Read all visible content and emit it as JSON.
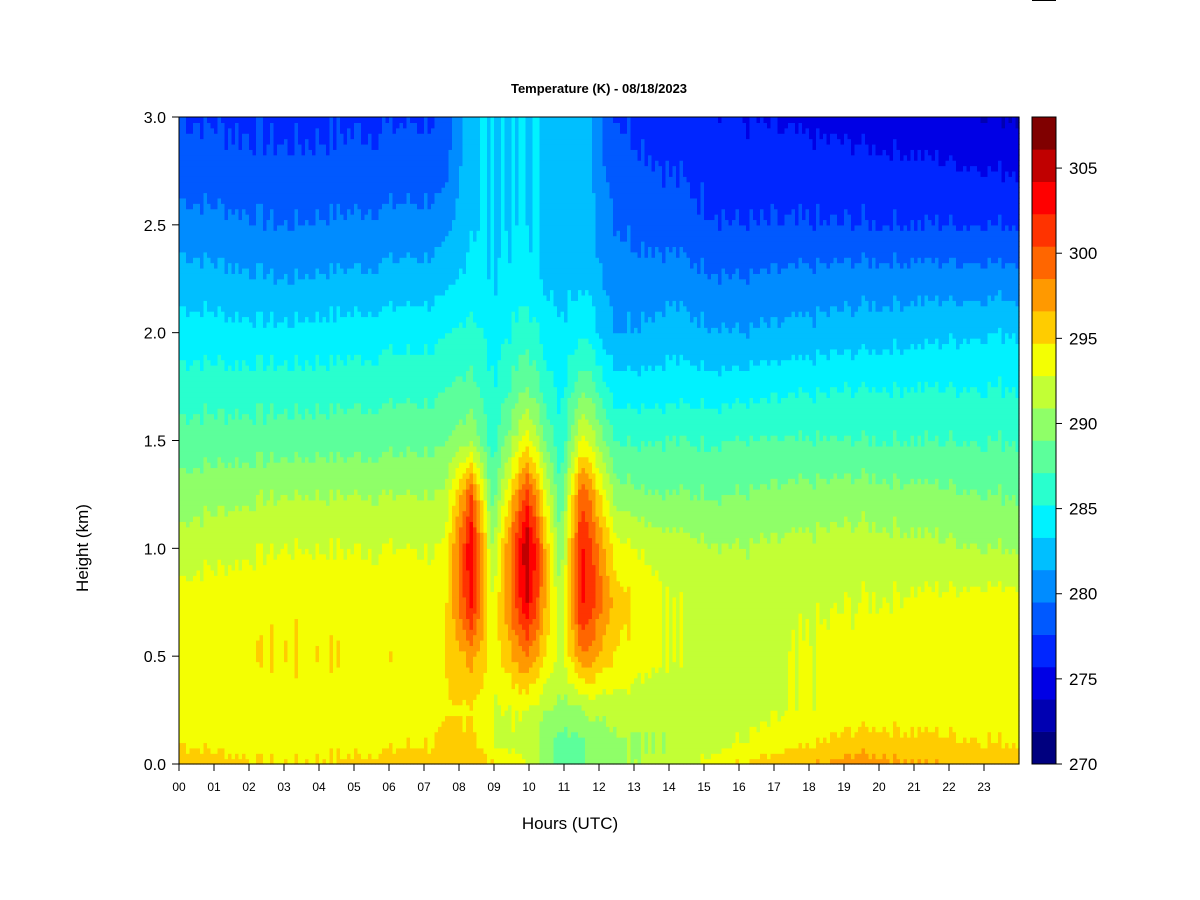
{
  "chart_data": {
    "type": "heatmap",
    "title": "Temperature (K) - 08/18/2023",
    "xlabel": "Hours (UTC)",
    "ylabel": "Height (km)",
    "x_tick_labels": [
      "00",
      "01",
      "02",
      "03",
      "04",
      "05",
      "06",
      "07",
      "08",
      "09",
      "10",
      "11",
      "12",
      "13",
      "14",
      "15",
      "16",
      "17",
      "18",
      "19",
      "20",
      "21",
      "22",
      "23"
    ],
    "x_range_hours": [
      0,
      24
    ],
    "y_tick_labels": [
      "0.0",
      "0.5",
      "1.0",
      "1.5",
      "2.0",
      "2.5",
      "3.0"
    ],
    "ylim": [
      0,
      3
    ],
    "colorbar": {
      "min": 270,
      "max": 308,
      "step": 2,
      "tick_labels": [
        "270",
        "275",
        "280",
        "285",
        "290",
        "295",
        "300",
        "305"
      ],
      "colors": [
        "#00007f",
        "#0000b2",
        "#0000e5",
        "#0026ff",
        "#0059ff",
        "#008cff",
        "#00bfff",
        "#00f2ff",
        "#29ffce",
        "#5cff9b",
        "#8fff68",
        "#c2ff35",
        "#f4ff02",
        "#ffcc00",
        "#ff9900",
        "#ff6600",
        "#ff3300",
        "#ff0000",
        "#c00000",
        "#800000"
      ]
    },
    "temperature_profiles": {
      "heights_km": [
        0.0,
        0.1,
        0.25,
        0.5,
        0.75,
        1.0,
        1.25,
        1.5,
        1.75,
        2.0,
        2.25,
        2.5,
        2.75,
        3.0
      ],
      "by_hour": [
        {
          "hour": 0.0,
          "temps_K": [
            297,
            296,
            295,
            295,
            295,
            293,
            291,
            289,
            287,
            285,
            283,
            281,
            279,
            278
          ]
        },
        {
          "hour": 3.0,
          "temps_K": [
            296,
            295,
            295,
            296,
            295.5,
            294,
            292,
            289,
            287,
            284.5,
            282,
            280,
            278.5,
            277.5
          ]
        },
        {
          "hour": 7.6,
          "temps_K": [
            297,
            296,
            295.5,
            295.5,
            295,
            294,
            292,
            289.5,
            287.5,
            285.5,
            283,
            281,
            279,
            278
          ]
        },
        {
          "hour": 8.35,
          "temps_K": [
            297,
            297,
            296,
            299,
            305,
            306,
            302,
            292,
            289,
            287,
            285,
            284,
            284,
            284
          ]
        },
        {
          "hour": 8.95,
          "temps_K": [
            296,
            294,
            294,
            295,
            294,
            292,
            289,
            287,
            286,
            285,
            284,
            284,
            284,
            284
          ]
        },
        {
          "hour": 9.95,
          "temps_K": [
            294,
            293,
            294,
            300,
            306,
            308,
            303,
            295,
            290,
            287,
            285,
            284,
            284,
            284
          ]
        },
        {
          "hour": 10.9,
          "temps_K": [
            289,
            289,
            291,
            293,
            292,
            290,
            288,
            286,
            285,
            284,
            283,
            283,
            283,
            283
          ]
        },
        {
          "hour": 11.5,
          "temps_K": [
            290,
            290,
            292,
            300,
            305,
            305,
            302,
            295,
            290,
            286,
            284,
            283,
            283,
            283
          ]
        },
        {
          "hour": 12.5,
          "temps_K": [
            292,
            292,
            293,
            296,
            297,
            295,
            291,
            288,
            285,
            282,
            281,
            280,
            279,
            278
          ]
        },
        {
          "hour": 14.0,
          "temps_K": [
            293,
            292,
            293,
            294,
            294,
            293,
            290,
            288,
            285,
            283,
            281,
            279,
            278,
            277
          ]
        },
        {
          "hour": 16.0,
          "temps_K": [
            296,
            294,
            293,
            293,
            293,
            292,
            290,
            288,
            285,
            282,
            280,
            278,
            277,
            276
          ]
        },
        {
          "hour": 19.5,
          "temps_K": [
            299,
            297,
            295,
            295,
            294,
            293,
            291,
            288,
            286,
            283,
            281,
            278,
            277,
            275
          ]
        },
        {
          "hour": 23.5,
          "temps_K": [
            297,
            296,
            295,
            295,
            295,
            292,
            290,
            288,
            286,
            284,
            281,
            278,
            276,
            274
          ]
        }
      ]
    },
    "grid": false,
    "legend": "colorbar-right"
  }
}
